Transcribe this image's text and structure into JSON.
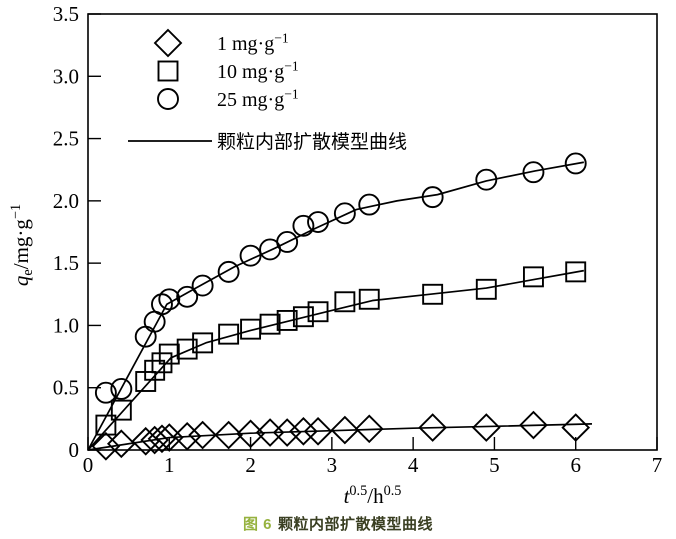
{
  "figure": {
    "caption_fig": "图 6",
    "caption_text": "颗粒内部扩散模型曲线",
    "caption_fig_color": "#96b23f",
    "caption_text_color": "#3a3f22"
  },
  "chart_data": {
    "type": "scatter",
    "title": "图 6 颗粒内部扩散模型曲线",
    "xlabel": "t^0.5/h^0.5",
    "ylabel": "qe/mg·g^-1",
    "xlabel_rich": [
      {
        "t": "t",
        "i": true
      },
      {
        "t": "0.5",
        "sup": true
      },
      {
        "t": "/h"
      },
      {
        "t": "0.5",
        "sup": true
      }
    ],
    "ylabel_rich": [
      {
        "t": "q",
        "i": true
      },
      {
        "t": "e",
        "sub": true
      },
      {
        "t": "/mg·g"
      },
      {
        "t": "−1",
        "sup": true
      }
    ],
    "xlim": [
      0,
      7
    ],
    "ylim": [
      0,
      3.5
    ],
    "xticks": [
      "0",
      "1",
      "2",
      "3",
      "4",
      "5",
      "6",
      "7"
    ],
    "yticks": [
      "0",
      "0.5",
      "1.0",
      "1.5",
      "2.0",
      "2.5",
      "3.0",
      "3.5"
    ],
    "grid": false,
    "legend_position": "upper-left-inside",
    "stroke_color": "#000000",
    "x": [
      0.22,
      0.41,
      0.71,
      0.82,
      0.91,
      1.0,
      1.22,
      1.41,
      1.73,
      2.0,
      2.24,
      2.45,
      2.65,
      2.83,
      3.16,
      3.46,
      4.24,
      4.9,
      5.48,
      6.0
    ],
    "series": [
      {
        "name": "1 mg·g−1",
        "marker": "diamond",
        "y": [
          0.03,
          0.05,
          0.07,
          0.08,
          0.09,
          0.1,
          0.11,
          0.12,
          0.12,
          0.13,
          0.14,
          0.14,
          0.15,
          0.15,
          0.16,
          0.17,
          0.18,
          0.18,
          0.2,
          0.18
        ],
        "model_curve": [
          [
            0,
            0
          ],
          [
            1.0,
            0.1
          ],
          [
            2.0,
            0.135
          ],
          [
            3.0,
            0.155
          ],
          [
            4.0,
            0.175
          ],
          [
            5.0,
            0.19
          ],
          [
            6.2,
            0.21
          ]
        ]
      },
      {
        "name": "10 mg·g−1",
        "marker": "square",
        "y": [
          0.2,
          0.32,
          0.55,
          0.64,
          0.7,
          0.77,
          0.81,
          0.86,
          0.93,
          0.97,
          1.01,
          1.04,
          1.07,
          1.11,
          1.19,
          1.21,
          1.25,
          1.29,
          1.39,
          1.43
        ],
        "model_curve": [
          [
            0,
            0
          ],
          [
            1.02,
            0.74
          ],
          [
            1.45,
            0.86
          ],
          [
            2.0,
            0.96
          ],
          [
            2.5,
            1.04
          ],
          [
            3.0,
            1.12
          ],
          [
            3.5,
            1.2
          ],
          [
            4.2,
            1.25
          ],
          [
            4.9,
            1.3
          ],
          [
            5.5,
            1.37
          ],
          [
            6.1,
            1.44
          ]
        ]
      },
      {
        "name": "25 mg·g−1",
        "marker": "circle",
        "y": [
          0.46,
          0.49,
          0.91,
          1.03,
          1.17,
          1.21,
          1.23,
          1.32,
          1.43,
          1.56,
          1.61,
          1.67,
          1.8,
          1.83,
          1.9,
          1.97,
          2.03,
          2.17,
          2.23,
          2.3
        ],
        "model_curve": [
          [
            0,
            0
          ],
          [
            0.97,
            1.17
          ],
          [
            1.3,
            1.29
          ],
          [
            1.8,
            1.47
          ],
          [
            2.3,
            1.62
          ],
          [
            2.8,
            1.78
          ],
          [
            3.3,
            1.93
          ],
          [
            3.8,
            2.0
          ],
          [
            4.3,
            2.05
          ],
          [
            4.9,
            2.16
          ],
          [
            5.5,
            2.24
          ],
          [
            6.1,
            2.31
          ]
        ]
      }
    ],
    "legend": {
      "entries": [
        {
          "marker": "diamond",
          "label": "1 mg·g−1",
          "label_rich": [
            {
              "t": "1 mg·g"
            },
            {
              "t": "−1",
              "sup": true
            }
          ]
        },
        {
          "marker": "square",
          "label": "10 mg·g−1",
          "label_rich": [
            {
              "t": "10 mg·g"
            },
            {
              "t": "−1",
              "sup": true
            }
          ]
        },
        {
          "marker": "circle",
          "label": "25 mg·g−1",
          "label_rich": [
            {
              "t": "25 mg·g"
            },
            {
              "t": "−1",
              "sup": true
            }
          ]
        },
        {
          "marker": "line",
          "label": "颗粒内部扩散模型曲线",
          "label_rich": [
            {
              "t": "颗粒内部扩散模型曲线"
            }
          ]
        }
      ]
    }
  }
}
